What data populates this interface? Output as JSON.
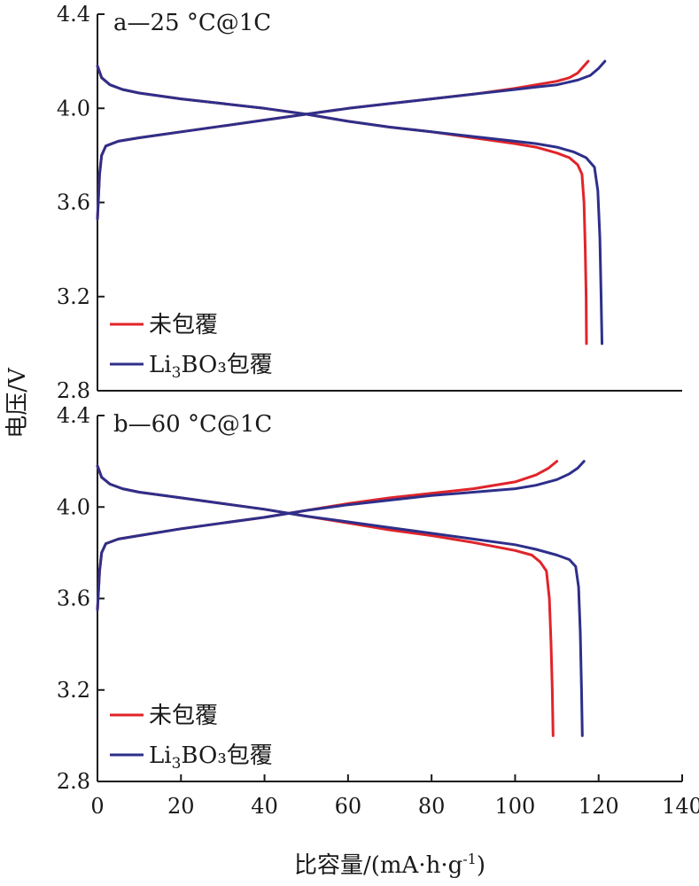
{
  "figure": {
    "xlabel": "比容量/(mA·h·g",
    "xlabel_sup": "-1",
    "xlabel_end": ")",
    "ylabel": "电压/V",
    "colors": {
      "uncoated": "#e0242a",
      "coated": "#2e2f8a",
      "axis": "#1a1a1a"
    }
  },
  "chart_data": [
    {
      "type": "line",
      "title": "a—25 °C@1C",
      "xlim": [
        0,
        140
      ],
      "ylim": [
        2.8,
        4.4
      ],
      "xticks": [
        "0",
        "20",
        "40",
        "60",
        "80",
        "100",
        "120",
        "140"
      ],
      "yticks": [
        "2.8",
        "3.2",
        "3.6",
        "4.0",
        "4.4"
      ],
      "legend_position": "bottom-left",
      "series": [
        {
          "name": "未包覆",
          "legend_base": "未包覆",
          "legend_sub": "",
          "legend_tail": "",
          "color": "#e0242a",
          "curves": [
            {
              "x": [
                0,
                0.5,
                1,
                2,
                5,
                10,
                20,
                30,
                40,
                50,
                60,
                70,
                80,
                90,
                100,
                105,
                110,
                113,
                115,
                116.5,
                117.5
              ],
              "y": [
                3.53,
                3.72,
                3.8,
                3.84,
                3.86,
                3.875,
                3.9,
                3.925,
                3.95,
                3.975,
                4.0,
                4.02,
                4.04,
                4.06,
                4.085,
                4.1,
                4.115,
                4.13,
                4.15,
                4.18,
                4.2
              ]
            },
            {
              "x": [
                0,
                1,
                3,
                6,
                10,
                20,
                30,
                40,
                50,
                60,
                70,
                80,
                90,
                100,
                105,
                110,
                113,
                115,
                116,
                116.5,
                116.8,
                117,
                117.1
              ],
              "y": [
                4.18,
                4.13,
                4.1,
                4.08,
                4.065,
                4.04,
                4.02,
                4.0,
                3.975,
                3.945,
                3.92,
                3.9,
                3.875,
                3.85,
                3.835,
                3.81,
                3.79,
                3.76,
                3.72,
                3.6,
                3.4,
                3.2,
                3.0
              ]
            }
          ]
        },
        {
          "name": "Li3BO3包覆",
          "legend_base": "Li",
          "legend_sub": "3",
          "legend_tail": "BO₃包覆",
          "color": "#2e2f8a",
          "curves": [
            {
              "x": [
                0,
                0.5,
                1,
                2,
                5,
                10,
                20,
                30,
                40,
                50,
                60,
                70,
                80,
                90,
                100,
                105,
                110,
                115,
                118,
                120,
                121.5
              ],
              "y": [
                3.53,
                3.72,
                3.8,
                3.84,
                3.86,
                3.875,
                3.9,
                3.925,
                3.95,
                3.975,
                4.0,
                4.02,
                4.04,
                4.06,
                4.08,
                4.09,
                4.1,
                4.12,
                4.14,
                4.17,
                4.2
              ]
            },
            {
              "x": [
                0,
                1,
                3,
                6,
                10,
                20,
                30,
                40,
                50,
                60,
                70,
                80,
                90,
                100,
                105,
                110,
                114,
                117,
                119,
                119.8,
                120.3,
                120.6,
                120.8
              ],
              "y": [
                4.18,
                4.13,
                4.1,
                4.08,
                4.065,
                4.04,
                4.02,
                4.0,
                3.975,
                3.945,
                3.92,
                3.9,
                3.88,
                3.86,
                3.85,
                3.835,
                3.815,
                3.79,
                3.75,
                3.65,
                3.45,
                3.2,
                3.0
              ]
            }
          ]
        }
      ]
    },
    {
      "type": "line",
      "title": "b—60 °C@1C",
      "xlim": [
        0,
        140
      ],
      "ylim": [
        2.8,
        4.4
      ],
      "xticks": [
        "0",
        "20",
        "40",
        "60",
        "80",
        "100",
        "120",
        "140"
      ],
      "yticks": [
        "2.8",
        "3.2",
        "3.6",
        "4.0",
        "4.4"
      ],
      "legend_position": "bottom-left",
      "series": [
        {
          "name": "未包覆",
          "legend_base": "未包覆",
          "legend_sub": "",
          "legend_tail": "",
          "color": "#e0242a",
          "curves": [
            {
              "x": [
                0,
                0.5,
                1,
                2,
                5,
                10,
                20,
                30,
                40,
                50,
                60,
                70,
                80,
                90,
                100,
                105,
                108,
                110
              ],
              "y": [
                3.55,
                3.72,
                3.8,
                3.84,
                3.86,
                3.875,
                3.905,
                3.93,
                3.955,
                3.985,
                4.015,
                4.04,
                4.06,
                4.08,
                4.11,
                4.14,
                4.17,
                4.2
              ]
            },
            {
              "x": [
                0,
                1,
                3,
                6,
                10,
                20,
                30,
                40,
                50,
                60,
                70,
                80,
                90,
                100,
                104,
                106,
                107.5,
                108.2,
                108.6,
                108.9,
                109.1
              ],
              "y": [
                4.18,
                4.13,
                4.1,
                4.08,
                4.065,
                4.04,
                4.015,
                3.99,
                3.96,
                3.93,
                3.9,
                3.875,
                3.845,
                3.81,
                3.79,
                3.76,
                3.72,
                3.6,
                3.4,
                3.2,
                3.0
              ]
            }
          ]
        },
        {
          "name": "Li3BO3包覆",
          "legend_base": "Li",
          "legend_sub": "3",
          "legend_tail": "BO₃包覆",
          "color": "#2e2f8a",
          "curves": [
            {
              "x": [
                0,
                0.5,
                1,
                2,
                5,
                10,
                20,
                30,
                40,
                50,
                60,
                70,
                80,
                90,
                100,
                105,
                110,
                113,
                115,
                116.5
              ],
              "y": [
                3.55,
                3.72,
                3.8,
                3.84,
                3.86,
                3.875,
                3.905,
                3.93,
                3.955,
                3.985,
                4.01,
                4.03,
                4.05,
                4.065,
                4.08,
                4.095,
                4.12,
                4.145,
                4.17,
                4.2
              ]
            },
            {
              "x": [
                0,
                1,
                3,
                6,
                10,
                20,
                30,
                40,
                50,
                60,
                70,
                80,
                90,
                100,
                105,
                110,
                113,
                114.5,
                115.2,
                115.6,
                115.9,
                116.1
              ],
              "y": [
                4.18,
                4.13,
                4.1,
                4.08,
                4.065,
                4.04,
                4.015,
                3.99,
                3.96,
                3.935,
                3.91,
                3.885,
                3.86,
                3.835,
                3.815,
                3.79,
                3.77,
                3.74,
                3.65,
                3.45,
                3.2,
                3.0
              ]
            }
          ]
        }
      ]
    }
  ]
}
